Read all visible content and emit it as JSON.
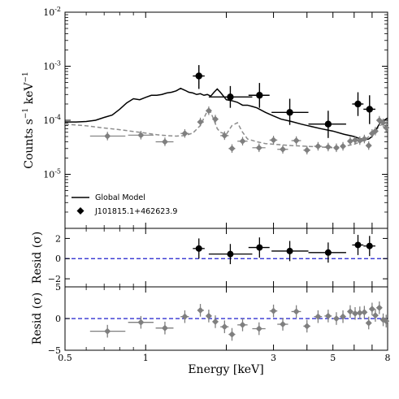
{
  "chart_data": [
    {
      "type": "scatter",
      "panel": "spectrum",
      "xscale": "log",
      "yscale": "log",
      "xlim": [
        0.5,
        8
      ],
      "ylim": [
        1e-06,
        0.01
      ],
      "ylabel_base": "Counts s",
      "ylabel_exp": "−1",
      "ylabel_unit": " keV",
      "ylabel_unit_exp": "−1",
      "y_ticks": [
        {
          "value": 0.01,
          "base": "10",
          "exp": "-2"
        },
        {
          "value": 0.001,
          "base": "10",
          "exp": "-3"
        },
        {
          "value": 0.0001,
          "base": "10",
          "exp": "-4"
        },
        {
          "value": 1e-05,
          "base": "10",
          "exp": "-5"
        }
      ],
      "legend": {
        "position": "lower-left",
        "model_label": "Global Model",
        "source_label": "J101815.1+462623.9"
      },
      "colors": {
        "source": "#000000",
        "background": "#7f7f7f",
        "model_bkg": "#8c8c8c"
      },
      "source_points": [
        {
          "x": 1.58,
          "xlo": 1.5,
          "xhi": 1.66,
          "y": 0.00066,
          "ylo": 0.00038,
          "yhi": 0.00105
        },
        {
          "x": 2.07,
          "xlo": 1.72,
          "xhi": 2.5,
          "y": 0.00027,
          "ylo": 0.00017,
          "yhi": 0.00043
        },
        {
          "x": 2.66,
          "xlo": 2.42,
          "xhi": 2.9,
          "y": 0.00029,
          "ylo": 0.00017,
          "yhi": 0.00049
        },
        {
          "x": 3.45,
          "xlo": 2.95,
          "xhi": 4.05,
          "y": 0.00014,
          "ylo": 8.2e-05,
          "yhi": 0.00025
        },
        {
          "x": 4.8,
          "xlo": 4.05,
          "xhi": 5.6,
          "y": 8.5e-05,
          "ylo": 4.7e-05,
          "yhi": 0.00015
        },
        {
          "x": 6.2,
          "xlo": 5.9,
          "xhi": 6.5,
          "y": 0.0002,
          "ylo": 0.00012,
          "yhi": 0.00033
        },
        {
          "x": 6.85,
          "xlo": 6.5,
          "xhi": 7.2,
          "y": 0.00016,
          "ylo": 8.5e-05,
          "yhi": 0.00029
        }
      ],
      "background_points": [
        {
          "x": 0.72,
          "xlo": 0.62,
          "xhi": 0.84,
          "y": 5.1e-05
        },
        {
          "x": 0.96,
          "xlo": 0.86,
          "xhi": 1.07,
          "y": 5.3e-05
        },
        {
          "x": 1.18,
          "xlo": 1.09,
          "xhi": 1.27,
          "y": 4e-05
        },
        {
          "x": 1.4,
          "xlo": 1.35,
          "xhi": 1.45,
          "y": 5.7e-05
        },
        {
          "x": 1.6,
          "xlo": 1.56,
          "xhi": 1.65,
          "y": 9.3e-05
        },
        {
          "x": 1.72,
          "xlo": 1.68,
          "xhi": 1.76,
          "y": 0.00015
        },
        {
          "x": 1.82,
          "xlo": 1.78,
          "xhi": 1.86,
          "y": 0.000105
        },
        {
          "x": 1.97,
          "xlo": 1.9,
          "xhi": 2.04,
          "y": 5.2e-05
        },
        {
          "x": 2.1,
          "xlo": 2.04,
          "xhi": 2.16,
          "y": 3e-05
        },
        {
          "x": 2.3,
          "xlo": 2.2,
          "xhi": 2.4,
          "y": 4.1e-05
        },
        {
          "x": 2.65,
          "xlo": 2.5,
          "xhi": 2.8,
          "y": 3.1e-05
        },
        {
          "x": 3.0,
          "xlo": 2.9,
          "xhi": 3.1,
          "y": 4.3e-05
        },
        {
          "x": 3.25,
          "xlo": 3.1,
          "xhi": 3.4,
          "y": 2.9e-05
        },
        {
          "x": 3.65,
          "xlo": 3.5,
          "xhi": 3.8,
          "y": 4.2e-05
        },
        {
          "x": 4.0,
          "xlo": 3.88,
          "xhi": 4.12,
          "y": 2.8e-05
        },
        {
          "x": 4.4,
          "xlo": 4.25,
          "xhi": 4.55,
          "y": 3.3e-05
        },
        {
          "x": 4.8,
          "xlo": 4.65,
          "xhi": 4.95,
          "y": 3.2e-05
        },
        {
          "x": 5.15,
          "xlo": 5.05,
          "xhi": 5.25,
          "y": 3.1e-05
        },
        {
          "x": 5.45,
          "xlo": 5.35,
          "xhi": 5.55,
          "y": 3.3e-05
        },
        {
          "x": 5.8,
          "xlo": 5.7,
          "xhi": 5.9,
          "y": 4.1e-05
        },
        {
          "x": 6.05,
          "xlo": 5.98,
          "xhi": 6.12,
          "y": 4.3e-05
        },
        {
          "x": 6.3,
          "xlo": 6.22,
          "xhi": 6.38,
          "y": 4.2e-05
        },
        {
          "x": 6.55,
          "xlo": 6.48,
          "xhi": 6.62,
          "y": 4.5e-05
        },
        {
          "x": 6.8,
          "xlo": 6.73,
          "xhi": 6.87,
          "y": 3.4e-05
        },
        {
          "x": 7.0,
          "xlo": 6.94,
          "xhi": 7.06,
          "y": 5.7e-05
        },
        {
          "x": 7.2,
          "xlo": 7.14,
          "xhi": 7.26,
          "y": 6.3e-05
        },
        {
          "x": 7.45,
          "xlo": 7.39,
          "xhi": 7.51,
          "y": 0.0001
        },
        {
          "x": 7.7,
          "xlo": 7.64,
          "xhi": 7.76,
          "y": 9e-05
        },
        {
          "x": 7.9,
          "xlo": 7.84,
          "xhi": 7.96,
          "y": 7.3e-05
        }
      ],
      "model_global": {
        "x": [
          0.5,
          0.55,
          0.6,
          0.65,
          0.7,
          0.75,
          0.8,
          0.85,
          0.9,
          0.95,
          1.0,
          1.05,
          1.1,
          1.15,
          1.2,
          1.25,
          1.3,
          1.35,
          1.4,
          1.45,
          1.5,
          1.55,
          1.6,
          1.65,
          1.7,
          1.75,
          1.8,
          1.85,
          1.9,
          2.0,
          2.1,
          2.2,
          2.3,
          2.4,
          2.5,
          2.6,
          2.8,
          3.0,
          3.2,
          3.5,
          3.8,
          4.0,
          4.5,
          5.0,
          5.5,
          6.0,
          6.2,
          6.4,
          6.6,
          6.8,
          7.0,
          7.5,
          8.0
        ],
        "y": [
          9.3e-05,
          9.3e-05,
          9.5e-05,
          0.0001,
          0.000113,
          0.000125,
          0.00016,
          0.00021,
          0.00025,
          0.00024,
          0.000265,
          0.00029,
          0.00029,
          0.0003,
          0.00032,
          0.00033,
          0.00035,
          0.00039,
          0.00036,
          0.00033,
          0.00032,
          0.0003,
          0.00031,
          0.00029,
          0.0003,
          0.00028,
          0.00033,
          0.00038,
          0.00033,
          0.00024,
          0.00023,
          0.000215,
          0.00019,
          0.00019,
          0.00018,
          0.00017,
          0.00014,
          0.00012,
          0.000105,
          9.5e-05,
          8.5e-05,
          8e-05,
          7e-05,
          6.3e-05,
          5.5e-05,
          5e-05,
          4.7e-05,
          4.5e-05,
          4.4e-05,
          4.5e-05,
          5e-05,
          9e-05,
          0.00011
        ]
      },
      "model_background": {
        "x": [
          0.5,
          0.6,
          0.7,
          0.8,
          0.9,
          1.0,
          1.1,
          1.2,
          1.3,
          1.4,
          1.5,
          1.6,
          1.65,
          1.7,
          1.75,
          1.8,
          1.85,
          1.9,
          2.0,
          2.1,
          2.2,
          2.3,
          2.4,
          2.6,
          2.8,
          3.0,
          3.5,
          4.0,
          4.5,
          5.0,
          5.5,
          6.0,
          6.5,
          7.0,
          7.5,
          8.0
        ],
        "y": [
          8.5e-05,
          7.9e-05,
          7.2e-05,
          6.7e-05,
          6.2e-05,
          5.8e-05,
          5.4e-05,
          5.2e-05,
          5.1e-05,
          5.2e-05,
          5.8e-05,
          8e-05,
          0.00011,
          0.00015,
          0.00014,
          0.0001,
          7e-05,
          6e-05,
          5.5e-05,
          8e-05,
          9e-05,
          6e-05,
          4.5e-05,
          4e-05,
          3.7e-05,
          3.6e-05,
          3.4e-05,
          3.3e-05,
          3.2e-05,
          3.1e-05,
          3.3e-05,
          3.6e-05,
          4.2e-05,
          5.5e-05,
          8e-05,
          9.5e-05
        ]
      }
    },
    {
      "type": "scatter",
      "panel": "source-residuals",
      "ylabel": "Resid (σ)",
      "ylim": [
        -2.8,
        3.0
      ],
      "y_ticks": [
        "2",
        "0",
        "−2"
      ],
      "zero_line": {
        "value": 0,
        "style": "dashed",
        "color": "#1f1fcc"
      },
      "points": [
        {
          "x": 1.58,
          "xlo": 1.5,
          "xhi": 1.66,
          "y": 1.0
        },
        {
          "x": 2.07,
          "xlo": 1.72,
          "xhi": 2.5,
          "y": 0.45
        },
        {
          "x": 2.66,
          "xlo": 2.42,
          "xhi": 2.9,
          "y": 1.1
        },
        {
          "x": 3.45,
          "xlo": 2.95,
          "xhi": 4.05,
          "y": 0.75
        },
        {
          "x": 4.8,
          "xlo": 4.05,
          "xhi": 5.6,
          "y": 0.6
        },
        {
          "x": 6.2,
          "xlo": 5.9,
          "xhi": 6.5,
          "y": 1.35
        },
        {
          "x": 6.85,
          "xlo": 6.5,
          "xhi": 7.2,
          "y": 1.25
        }
      ]
    },
    {
      "type": "scatter",
      "panel": "background-residuals",
      "ylabel": "Resid (σ)",
      "xlabel": "Energy [keV]",
      "ylim": [
        -5,
        5
      ],
      "y_ticks": [
        "5",
        "0",
        "−5"
      ],
      "x_ticks": [
        {
          "value": 0.5,
          "label": "0.5"
        },
        {
          "value": 1,
          "label": "1"
        },
        {
          "value": 3,
          "label": "3"
        },
        {
          "value": 5,
          "label": "5"
        },
        {
          "value": 8,
          "label": "8"
        }
      ],
      "zero_line": {
        "value": 0,
        "style": "dashed",
        "color": "#1f1fcc"
      },
      "points": [
        {
          "x": 0.72,
          "xlo": 0.62,
          "xhi": 0.84,
          "y": -2.0
        },
        {
          "x": 0.96,
          "xlo": 0.86,
          "xhi": 1.07,
          "y": -0.6
        },
        {
          "x": 1.18,
          "xlo": 1.09,
          "xhi": 1.27,
          "y": -1.5
        },
        {
          "x": 1.4,
          "xlo": 1.35,
          "xhi": 1.45,
          "y": 0.3
        },
        {
          "x": 1.6,
          "xlo": 1.56,
          "xhi": 1.65,
          "y": 1.3
        },
        {
          "x": 1.72,
          "xlo": 1.68,
          "xhi": 1.76,
          "y": 0.4
        },
        {
          "x": 1.82,
          "xlo": 1.78,
          "xhi": 1.86,
          "y": -0.5
        },
        {
          "x": 1.97,
          "xlo": 1.9,
          "xhi": 2.04,
          "y": -1.3
        },
        {
          "x": 2.1,
          "xlo": 2.04,
          "xhi": 2.16,
          "y": -2.5
        },
        {
          "x": 2.3,
          "xlo": 2.2,
          "xhi": 2.4,
          "y": -1.0
        },
        {
          "x": 2.65,
          "xlo": 2.5,
          "xhi": 2.8,
          "y": -1.6
        },
        {
          "x": 3.0,
          "xlo": 2.9,
          "xhi": 3.1,
          "y": 1.2
        },
        {
          "x": 3.25,
          "xlo": 3.1,
          "xhi": 3.4,
          "y": -0.9
        },
        {
          "x": 3.65,
          "xlo": 3.5,
          "xhi": 3.8,
          "y": 1.1
        },
        {
          "x": 4.0,
          "xlo": 3.88,
          "xhi": 4.12,
          "y": -1.2
        },
        {
          "x": 4.4,
          "xlo": 4.25,
          "xhi": 4.55,
          "y": 0.3
        },
        {
          "x": 4.8,
          "xlo": 4.65,
          "xhi": 4.95,
          "y": 0.4
        },
        {
          "x": 5.15,
          "xlo": 5.05,
          "xhi": 5.25,
          "y": 0.0
        },
        {
          "x": 5.45,
          "xlo": 5.35,
          "xhi": 5.55,
          "y": 0.3
        },
        {
          "x": 5.8,
          "xlo": 5.7,
          "xhi": 5.9,
          "y": 1.1
        },
        {
          "x": 6.05,
          "xlo": 5.98,
          "xhi": 6.12,
          "y": 0.8
        },
        {
          "x": 6.3,
          "xlo": 6.22,
          "xhi": 6.38,
          "y": 0.9
        },
        {
          "x": 6.55,
          "xlo": 6.48,
          "xhi": 6.62,
          "y": 1.0
        },
        {
          "x": 6.8,
          "xlo": 6.73,
          "xhi": 6.87,
          "y": -0.7
        },
        {
          "x": 7.0,
          "xlo": 6.94,
          "xhi": 7.06,
          "y": 1.5
        },
        {
          "x": 7.2,
          "xlo": 7.14,
          "xhi": 7.26,
          "y": 0.5
        },
        {
          "x": 7.45,
          "xlo": 7.39,
          "xhi": 7.51,
          "y": 1.7
        },
        {
          "x": 7.7,
          "xlo": 7.64,
          "xhi": 7.76,
          "y": -0.2
        },
        {
          "x": 7.9,
          "xlo": 7.84,
          "xhi": 7.96,
          "y": -0.4
        }
      ]
    }
  ]
}
